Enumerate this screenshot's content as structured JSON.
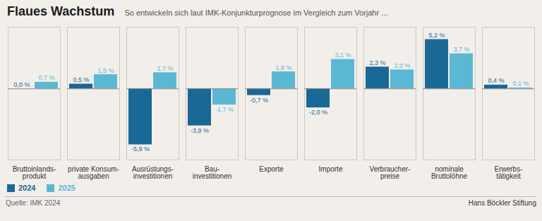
{
  "chart_data": {
    "type": "bar",
    "title": "Flaues Wachstum",
    "subtitle": "So entwickeln sich laut IMK-Konjunkturprognose im Vergleich zum Vorjahr ...",
    "source": "Quelle: IMK 2024",
    "annotations": [
      "Hans Böckler Stiftung"
    ],
    "categories": [
      "Bruttoinlands-\nprodukt",
      "private Konsum-\nausgaben",
      "Ausrüstungs-\ninvestitionen",
      "Bau-\ninvestitionen",
      "Exporte",
      "Importe",
      "Verbraucher-\npreise",
      "nominale\nBruttolöhne",
      "Erwerbs-\ntätigkeit"
    ],
    "series": [
      {
        "name": "2024",
        "color": "#1a6896",
        "values": [
          0.0,
          0.5,
          -5.9,
          -3.9,
          -0.7,
          -2.0,
          2.3,
          5.2,
          0.4
        ],
        "value_labels": [
          "0,0 %",
          "0,5 %",
          "-5,9 %",
          "-3,9 %",
          "-0,7 %",
          "-2,0 %",
          "2,3 %",
          "5,2 %",
          "0,4 %"
        ]
      },
      {
        "name": "2025",
        "color": "#5ab8d4",
        "values": [
          0.7,
          1.5,
          1.7,
          -1.7,
          1.8,
          3.1,
          2.0,
          3.7,
          0.1
        ],
        "value_labels": [
          "0,7 %",
          "1,5 %",
          "1,7 %",
          "-1,7 %",
          "1,8 %",
          "3,1 %",
          "2,0 %",
          "3,7 %",
          "0,1 %"
        ]
      }
    ],
    "ylim": [
      -7.5,
      6.5
    ],
    "data_labels": true,
    "tick_labels": "x",
    "legend": "lower left",
    "grid": false
  }
}
